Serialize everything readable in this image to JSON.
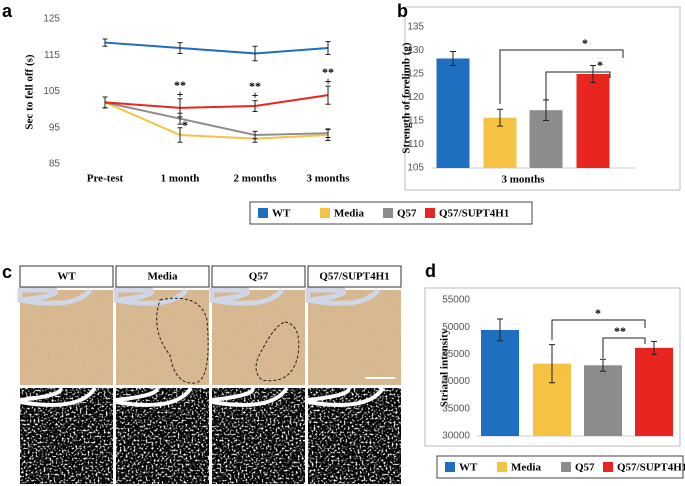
{
  "chart_data": [
    {
      "type": "line",
      "panel_label": "a",
      "y_label": "Sec to fell off (s)",
      "categories": [
        "Pre-test",
        "1 month",
        "2 months",
        "3 months"
      ],
      "ylim": [
        85,
        125
      ],
      "yticks": [
        85,
        95,
        105,
        115,
        125
      ],
      "series": [
        {
          "name": "WT",
          "color": "#1f6fc0",
          "values": [
            118.5,
            117,
            115.5,
            117
          ],
          "errors": [
            1,
            1.5,
            2,
            1.8
          ]
        },
        {
          "name": "Media",
          "color": "#f5c243",
          "values": [
            102,
            93,
            92,
            93
          ],
          "errors": [
            1.5,
            2,
            1,
            1.5
          ]
        },
        {
          "name": "Q57",
          "color": "#8c8c8c",
          "values": [
            102,
            97.5,
            93,
            93.5
          ],
          "errors": [
            1.5,
            1.5,
            1,
            1.2
          ]
        },
        {
          "name": "Q57/SUPT4H1",
          "color": "#e8251f",
          "values": [
            102,
            100.5,
            101,
            104
          ],
          "errors": [
            1.5,
            2.5,
            1.5,
            2.5
          ]
        }
      ],
      "annotations": [
        "**",
        "+",
        "*",
        "**",
        "+",
        "**",
        "+"
      ]
    },
    {
      "type": "bar",
      "panel_label": "b",
      "y_label": "Strength of forelimb (g)",
      "categories": [
        "3 months"
      ],
      "ylim": [
        105,
        135
      ],
      "yticks": [
        105,
        110,
        115,
        120,
        125,
        130,
        135
      ],
      "series": [
        {
          "color": "#1f6fc0",
          "values": [
            128.3
          ],
          "errors": [
            1.5
          ]
        },
        {
          "color": "#f5c243",
          "values": [
            115.7
          ],
          "errors": [
            1.8
          ]
        },
        {
          "color": "#8c8c8c",
          "values": [
            117.3
          ],
          "errors": [
            2.2
          ]
        },
        {
          "color": "#e8251f",
          "values": [
            125
          ],
          "errors": [
            1.8
          ]
        }
      ],
      "annotations": [
        "*",
        "*"
      ]
    },
    {
      "type": "bar",
      "panel_label": "d",
      "y_label": "Striatal intensity",
      "categories": [
        null
      ],
      "ylim": [
        30000,
        55000
      ],
      "yticks": [
        30000,
        35000,
        40000,
        45000,
        50000,
        55000
      ],
      "series": [
        {
          "name": "WT",
          "color": "#1f6fc0",
          "values": [
            49500
          ],
          "errors": [
            2000
          ]
        },
        {
          "name": "Media",
          "color": "#f5c243",
          "values": [
            43300
          ],
          "errors": [
            3500
          ]
        },
        {
          "name": "Q57",
          "color": "#8c8c8c",
          "values": [
            43000
          ],
          "errors": [
            1100
          ]
        },
        {
          "name": "Q57/SUPT4H1",
          "color": "#e8251f",
          "values": [
            46200
          ],
          "errors": [
            1200
          ]
        }
      ],
      "annotations": [
        "*",
        "**"
      ]
    }
  ],
  "image_panel": {
    "panel_label": "c",
    "columns": [
      "WT",
      "Media",
      "Q57",
      "Q57/SUPT4H1"
    ]
  }
}
